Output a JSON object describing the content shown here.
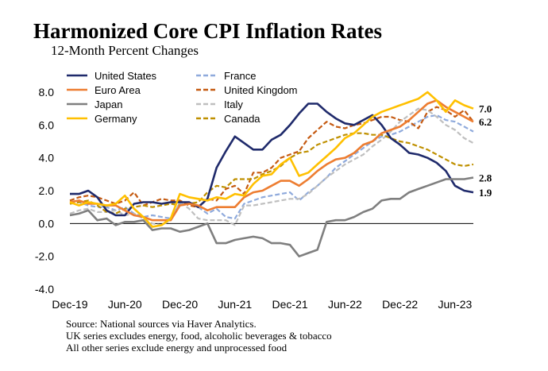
{
  "chart_data": {
    "type": "line",
    "title": "Harmonized Core CPI Inflation Rates",
    "subtitle": "12-Month Percent Changes",
    "xlabel": "",
    "ylabel": "",
    "ylim": [
      -4.0,
      8.0
    ],
    "yticks": [
      "8.0",
      "6.0",
      "4.0",
      "2.0",
      "0.0",
      "-2.0",
      "-4.0"
    ],
    "ytick_values": [
      8,
      6,
      4,
      2,
      0,
      -2,
      -4
    ],
    "x_start": "2019-12",
    "x_end": "2023-08",
    "xticks": [
      {
        "label": "Dec-19",
        "index": 0
      },
      {
        "label": "Jun-20",
        "index": 6
      },
      {
        "label": "Dec-20",
        "index": 12
      },
      {
        "label": "Jun-21",
        "index": 18
      },
      {
        "label": "Dec-21",
        "index": 24
      },
      {
        "label": "Jun-22",
        "index": 30
      },
      {
        "label": "Dec-22",
        "index": 36
      },
      {
        "label": "Jun-23",
        "index": 42
      }
    ],
    "grid": false,
    "legend": "top, two columns",
    "series": [
      {
        "name": "United States",
        "color": "#1f2a6b",
        "dash": "solid",
        "values": [
          1.8,
          1.8,
          2.0,
          1.6,
          0.8,
          0.5,
          0.5,
          1.2,
          1.3,
          1.3,
          1.2,
          1.3,
          1.3,
          1.3,
          1.0,
          1.5,
          3.4,
          4.4,
          5.3,
          4.9,
          4.5,
          4.5,
          5.1,
          5.4,
          6.0,
          6.7,
          7.3,
          7.3,
          6.8,
          6.4,
          6.1,
          6.0,
          6.3,
          6.6,
          6.0,
          5.2,
          4.8,
          4.3,
          4.2,
          4.0,
          3.7,
          3.2,
          2.3,
          2.0,
          1.9
        ]
      },
      {
        "name": "Euro Area",
        "color": "#ed7d31",
        "dash": "solid",
        "values": [
          1.3,
          1.4,
          1.2,
          1.2,
          1.1,
          1.1,
          0.8,
          0.5,
          0.4,
          0.2,
          0.2,
          0.2,
          1.1,
          1.2,
          1.1,
          0.8,
          1.0,
          1.0,
          1.0,
          1.6,
          1.9,
          2.0,
          2.3,
          2.6,
          2.6,
          2.3,
          2.7,
          3.2,
          3.6,
          3.9,
          4.0,
          4.3,
          4.8,
          5.0,
          5.5,
          5.7,
          5.9,
          6.3,
          6.8,
          7.3,
          7.5,
          7.1,
          6.8,
          6.5,
          6.2
        ]
      },
      {
        "name": "Japan",
        "color": "#7f7f7f",
        "dash": "solid",
        "values": [
          0.5,
          0.6,
          0.8,
          0.2,
          0.3,
          -0.1,
          0.1,
          0.1,
          0.2,
          -0.4,
          -0.3,
          -0.3,
          -0.5,
          -0.4,
          -0.2,
          0.0,
          -1.2,
          -1.2,
          -1.0,
          -0.9,
          -0.8,
          -0.9,
          -1.2,
          -1.2,
          -1.3,
          -2.0,
          -1.8,
          -1.6,
          0.1,
          0.2,
          0.2,
          0.4,
          0.7,
          0.9,
          1.4,
          1.5,
          1.5,
          1.9,
          2.1,
          2.3,
          2.5,
          2.7,
          2.7,
          2.7,
          2.8
        ]
      },
      {
        "name": "Germany",
        "color": "#ffc000",
        "dash": "solid",
        "values": [
          1.3,
          1.1,
          1.3,
          1.2,
          1.1,
          1.2,
          1.7,
          0.9,
          0.4,
          -0.2,
          -0.1,
          0.3,
          1.8,
          1.6,
          1.5,
          1.4,
          1.6,
          1.5,
          1.8,
          1.7,
          2.4,
          2.9,
          3.0,
          3.6,
          4.0,
          2.9,
          3.1,
          3.6,
          4.1,
          4.6,
          5.2,
          5.5,
          6.0,
          6.5,
          6.8,
          7.0,
          7.2,
          7.4,
          7.6,
          8.0,
          7.5,
          6.8,
          7.5,
          7.2,
          7.0
        ]
      },
      {
        "name": "France",
        "color": "#8faadc",
        "dash": "dash",
        "values": [
          1.2,
          1.3,
          1.1,
          1.0,
          1.0,
          0.8,
          1.0,
          0.6,
          0.4,
          0.5,
          0.4,
          0.3,
          1.2,
          1.3,
          1.0,
          0.6,
          0.9,
          0.4,
          0.3,
          1.2,
          1.4,
          1.6,
          1.7,
          1.8,
          1.9,
          1.4,
          1.9,
          2.3,
          2.8,
          3.4,
          3.8,
          4.2,
          4.6,
          5.0,
          5.3,
          5.4,
          5.6,
          5.9,
          6.2,
          6.5,
          6.6,
          6.3,
          6.2,
          5.9,
          5.6
        ]
      },
      {
        "name": "United Kingdom",
        "color": "#c55a11",
        "dash": "dash",
        "values": [
          1.4,
          1.6,
          1.7,
          1.6,
          1.4,
          1.2,
          1.4,
          1.9,
          1.1,
          1.3,
          1.5,
          1.4,
          1.4,
          1.1,
          1.0,
          1.5,
          1.4,
          2.1,
          2.3,
          1.8,
          3.1,
          3.1,
          3.4,
          4.0,
          4.2,
          4.4,
          5.2,
          5.7,
          6.2,
          5.9,
          5.8,
          6.0,
          6.1,
          6.3,
          6.5,
          6.5,
          6.3,
          6.2,
          5.8,
          6.8,
          7.1,
          6.9,
          6.5,
          6.9,
          6.2
        ]
      },
      {
        "name": "Italy",
        "color": "#bfbfbf",
        "dash": "dash",
        "values": [
          0.6,
          0.8,
          0.9,
          0.7,
          0.7,
          0.8,
          0.5,
          0.6,
          0.3,
          0.0,
          -0.1,
          0.2,
          1.3,
          0.9,
          0.3,
          0.2,
          0.2,
          0.2,
          -0.1,
          1.1,
          1.1,
          1.2,
          1.3,
          1.4,
          1.5,
          1.5,
          1.8,
          2.3,
          2.8,
          3.2,
          3.6,
          3.9,
          4.2,
          4.7,
          5.1,
          5.6,
          6.2,
          6.6,
          7.0,
          6.9,
          6.5,
          6.0,
          5.7,
          5.2,
          4.9
        ]
      },
      {
        "name": "Canada",
        "color": "#bf9000",
        "dash": "dash",
        "values": [
          1.2,
          1.3,
          1.4,
          1.1,
          0.7,
          0.6,
          0.9,
          1.0,
          1.1,
          1.0,
          1.1,
          1.2,
          1.1,
          1.2,
          1.3,
          1.9,
          2.3,
          2.2,
          2.7,
          2.7,
          2.7,
          3.0,
          3.2,
          3.5,
          4.0,
          4.3,
          4.4,
          4.8,
          5.0,
          5.2,
          5.4,
          5.5,
          5.5,
          5.4,
          5.4,
          5.2,
          5.0,
          4.9,
          4.7,
          4.5,
          4.2,
          3.9,
          3.6,
          3.5,
          3.6
        ]
      }
    ],
    "end_labels": [
      {
        "text": "7.0",
        "value": 7.0
      },
      {
        "text": "6.2",
        "value": 6.2
      },
      {
        "text": "2.8",
        "value": 2.8
      },
      {
        "text": "1.9",
        "value": 1.9
      }
    ],
    "notes": [
      "Source: National sources via Haver Analytics.",
      "UK series excludes energy, food, alcoholic beverages & tobacco",
      "All other series exclude energy and unprocessed food"
    ]
  }
}
